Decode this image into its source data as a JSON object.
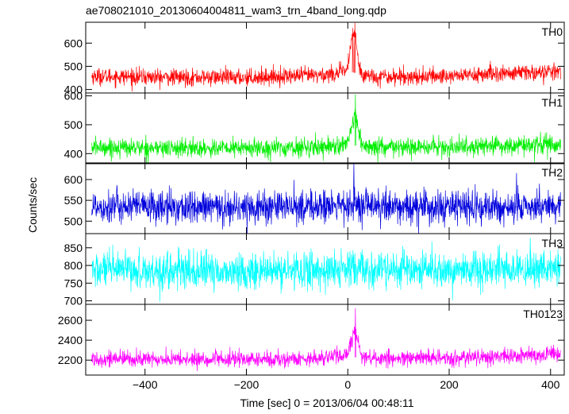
{
  "title": "ae708021010_20130604004811_wam3_trn_4band_long.qdp",
  "chart_data": {
    "type": "line",
    "title": "ae708021010_20130604004811_wam3_trn_4band_long.qdp",
    "xlabel": "Time [sec] 0 = 2013/06/04 00:48:11",
    "ylabel": "Counts/sec",
    "xlim": [
      -517,
      427
    ],
    "xticks": [
      -400,
      -200,
      0,
      200,
      400
    ],
    "xtick_labels": [
      "−400",
      "−200",
      "0",
      "200",
      "400"
    ],
    "grid": false,
    "legend": "none",
    "panels": [
      {
        "name": "TH0",
        "color": "#ff0000",
        "ylim": [
          385,
          690
        ],
        "yticks": [
          400,
          500,
          600
        ],
        "baseline": 453,
        "noise": 18,
        "trend": [
          [
            -517,
            458
          ],
          [
            -350,
            452
          ],
          [
            -200,
            452
          ],
          [
            -50,
            462
          ],
          [
            0,
            478
          ],
          [
            50,
            456
          ],
          [
            150,
            455
          ],
          [
            300,
            468
          ],
          [
            427,
            478
          ]
        ],
        "burst": {
          "peak_x": 12,
          "peak_y": 630,
          "width": 6
        },
        "markers": [
          {
            "x": 14,
            "y": 688
          },
          {
            "x": 10,
            "y": 665
          }
        ]
      },
      {
        "name": "TH1",
        "color": "#00ee00",
        "ylim": [
          365,
          610
        ],
        "yticks": [
          400,
          500,
          600
        ],
        "baseline": 420,
        "noise": 16,
        "trend": [
          [
            -517,
            422
          ],
          [
            -300,
            418
          ],
          [
            -100,
            420
          ],
          [
            0,
            430
          ],
          [
            60,
            420
          ],
          [
            200,
            422
          ],
          [
            427,
            432
          ]
        ],
        "burst": {
          "peak_x": 14,
          "peak_y": 520,
          "width": 6
        },
        "markers": [
          {
            "x": 15,
            "y": 605
          }
        ]
      },
      {
        "name": "TH2",
        "color": "#0000dd",
        "ylim": [
          470,
          640
        ],
        "yticks": [
          500,
          550,
          600
        ],
        "baseline": 535,
        "noise": 20,
        "trend": [
          [
            -517,
            537
          ],
          [
            -300,
            532
          ],
          [
            0,
            536
          ],
          [
            200,
            532
          ],
          [
            427,
            535
          ]
        ],
        "burst": null,
        "markers": [
          {
            "x": 12,
            "y": 638
          },
          {
            "x": 378,
            "y": 590
          }
        ]
      },
      {
        "name": "TH3",
        "color": "#00ffff",
        "ylim": [
          690,
          890
        ],
        "yticks": [
          700,
          750,
          800,
          850
        ],
        "baseline": 785,
        "noise": 26,
        "trend": [
          [
            -517,
            787
          ],
          [
            -200,
            782
          ],
          [
            0,
            788
          ],
          [
            200,
            784
          ],
          [
            427,
            790
          ]
        ],
        "burst": null,
        "markers": [
          {
            "x": 360,
            "y": 878
          }
        ]
      },
      {
        "name": "TH0123",
        "color": "#ff00ff",
        "ylim": [
          2050,
          2760
        ],
        "yticks": [
          2200,
          2400,
          2600
        ],
        "baseline": 2210,
        "noise": 40,
        "trend": [
          [
            -517,
            2215
          ],
          [
            -300,
            2205
          ],
          [
            -100,
            2210
          ],
          [
            -20,
            2240
          ],
          [
            50,
            2215
          ],
          [
            200,
            2218
          ],
          [
            427,
            2260
          ]
        ],
        "burst": {
          "peak_x": 14,
          "peak_y": 2470,
          "width": 7
        },
        "markers": [
          {
            "x": 15,
            "y": 2720
          }
        ]
      }
    ]
  }
}
